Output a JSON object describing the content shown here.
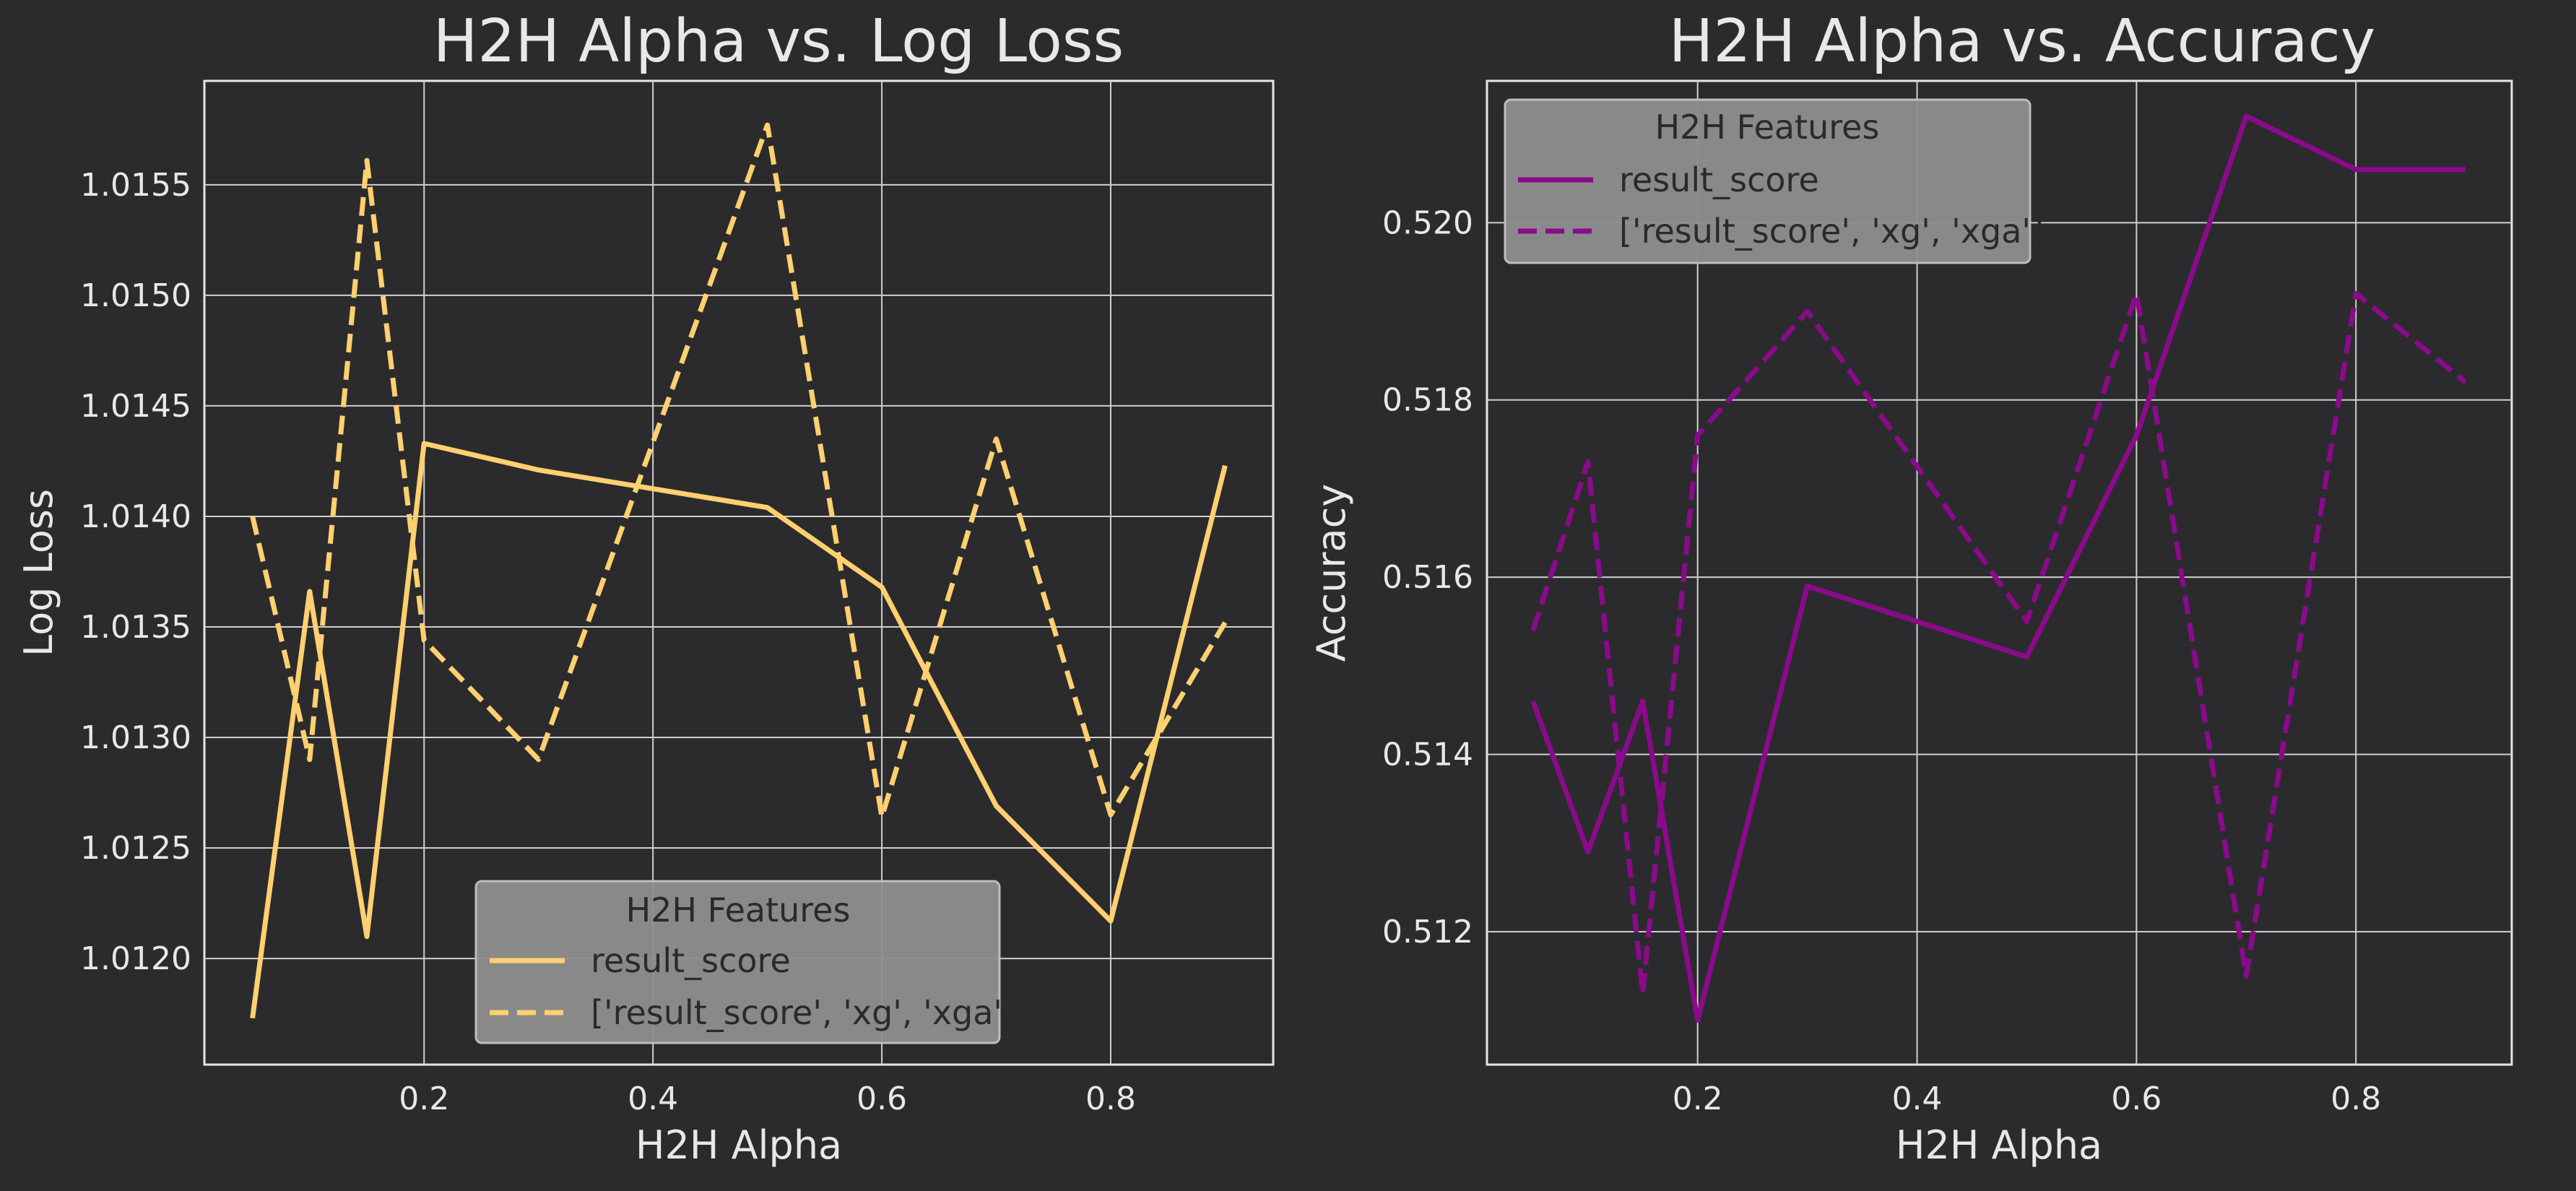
{
  "chart_data": [
    {
      "type": "line",
      "title": "H2H Alpha vs. Log Loss",
      "xlabel": "H2H Alpha",
      "ylabel": "Log Loss",
      "xlim": [
        0.008,
        0.942
      ],
      "ylim": [
        1.01152,
        1.01597
      ],
      "xticks": [
        0.2,
        0.4,
        0.6,
        0.8
      ],
      "xtick_labels": [
        "0.2",
        "0.4",
        "0.6",
        "0.8"
      ],
      "yticks": [
        1.012,
        1.0125,
        1.013,
        1.0135,
        1.014,
        1.0145,
        1.015,
        1.0155
      ],
      "ytick_labels": [
        "1.0120",
        "1.0125",
        "1.0130",
        "1.0135",
        "1.0140",
        "1.0145",
        "1.0150",
        "1.0155"
      ],
      "grid": true,
      "legend_title": "H2H Features",
      "legend_position": "bottom-center",
      "color": "#ffd070",
      "series": [
        {
          "name": "result_score",
          "style": "solid",
          "x": [
            0.05,
            0.1,
            0.15,
            0.2,
            0.3,
            0.5,
            0.6,
            0.7,
            0.8,
            0.9
          ],
          "y": [
            1.01173,
            1.01366,
            1.0121,
            1.01433,
            1.01421,
            1.01404,
            1.01368,
            1.01269,
            1.01217,
            1.01423
          ]
        },
        {
          "name": "['result_score', 'xg', 'xga']",
          "style": "dashed",
          "x": [
            0.05,
            0.1,
            0.15,
            0.2,
            0.3,
            0.5,
            0.6,
            0.7,
            0.8,
            0.9
          ],
          "y": [
            1.014,
            1.0129,
            1.01561,
            1.01344,
            1.0129,
            1.01577,
            1.01264,
            1.01435,
            1.01265,
            1.01352
          ]
        }
      ]
    },
    {
      "type": "line",
      "title": "H2H Alpha vs. Accuracy",
      "xlabel": "H2H Alpha",
      "ylabel": "Accuracy",
      "xlim": [
        0.008,
        0.942
      ],
      "ylim": [
        0.5105,
        0.5216
      ],
      "xticks": [
        0.2,
        0.4,
        0.6,
        0.8
      ],
      "xtick_labels": [
        "0.2",
        "0.4",
        "0.6",
        "0.8"
      ],
      "yticks": [
        0.512,
        0.514,
        0.516,
        0.518,
        0.52
      ],
      "ytick_labels": [
        "0.512",
        "0.514",
        "0.516",
        "0.518",
        "0.520"
      ],
      "grid": true,
      "legend_title": "H2H Features",
      "legend_position": "top-left",
      "color": "#8b0a8b",
      "series": [
        {
          "name": "result_score",
          "style": "solid",
          "x": [
            0.05,
            0.1,
            0.15,
            0.2,
            0.3,
            0.5,
            0.6,
            0.7,
            0.8,
            0.9
          ],
          "y": [
            0.5146,
            0.5129,
            0.5146,
            0.511,
            0.5159,
            0.5151,
            0.5176,
            0.5212,
            0.5206,
            0.5206
          ]
        },
        {
          "name": "['result_score', 'xg', 'xga']",
          "style": "dashed",
          "x": [
            0.05,
            0.1,
            0.15,
            0.2,
            0.3,
            0.5,
            0.6,
            0.7,
            0.8,
            0.9
          ],
          "y": [
            0.5154,
            0.5173,
            0.5113,
            0.5176,
            0.519,
            0.5155,
            0.5192,
            0.5115,
            0.5192,
            0.5182
          ]
        }
      ]
    }
  ]
}
